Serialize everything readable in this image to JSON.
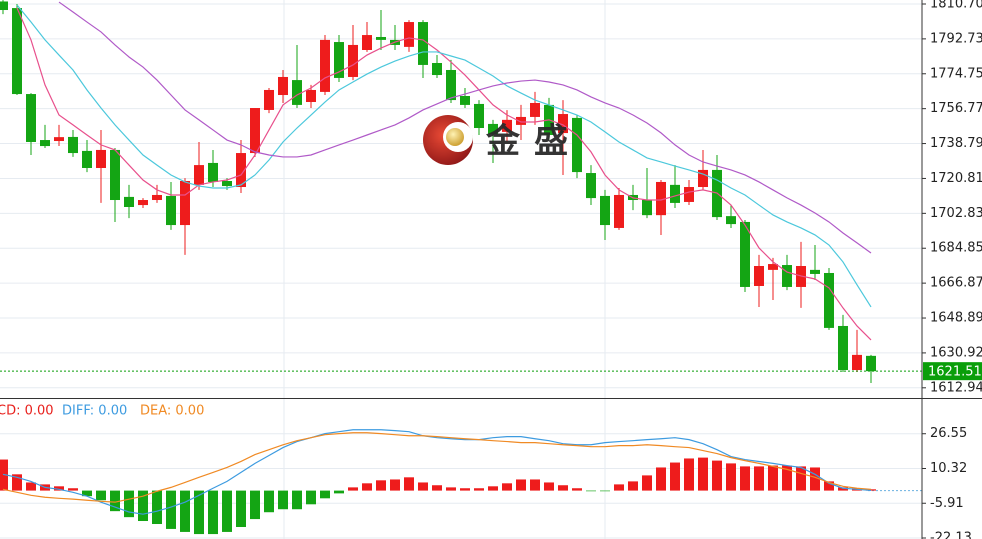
{
  "watermark": "金盛",
  "chart_data": [
    {
      "type": "candlestick",
      "open": [
        1812,
        1808.6,
        1764.3,
        1740.6,
        1740.1,
        1742.2,
        1735,
        1726.2,
        1735.5,
        1711.3,
        1707.1,
        1709.7,
        1711.8,
        1696.8,
        1717.5,
        1728.8,
        1719.5,
        1716.4,
        1733.9,
        1756.1,
        1763.8,
        1771.5,
        1760.2,
        1765.4,
        1791.1,
        1773.1,
        1787,
        1793.7,
        1792.2,
        1788.6,
        1801.4,
        1780.3,
        1776.7,
        1763.3,
        1759.2,
        1748.9,
        1744.8,
        1748.4,
        1752.5,
        1758.7,
        1744.2,
        1752,
        1723.6,
        1711.8,
        1695.3,
        1712.3,
        1709.7,
        1701.9,
        1717.5,
        1708.7,
        1716.4,
        1725.2,
        1701.4,
        1698.4,
        1665.4,
        1673.7,
        1676.2,
        1664.9,
        1673.7,
        1672.1,
        1644.8,
        1622.1,
        1629.4
      ],
      "high": [
        1812.7,
        1810.7,
        1764.8,
        1748.4,
        1748.4,
        1745.8,
        1740.6,
        1745.8,
        1736.5,
        1717.5,
        1710.7,
        1717.5,
        1719,
        1721,
        1739.6,
        1735.5,
        1721,
        1740.6,
        1757.1,
        1767.4,
        1776.7,
        1789.6,
        1769,
        1794.7,
        1794.7,
        1799.9,
        1801.4,
        1807.6,
        1799.9,
        1802.4,
        1802.4,
        1784.4,
        1781.9,
        1767.4,
        1761.2,
        1751,
        1756,
        1758.7,
        1765.4,
        1762.3,
        1761.2,
        1753.5,
        1727.7,
        1714.9,
        1715.9,
        1717.5,
        1726.2,
        1720,
        1727.7,
        1720,
        1735.5,
        1732.9,
        1707.1,
        1699.4,
        1681.4,
        1679.9,
        1681.4,
        1688.1,
        1686.5,
        1674.7,
        1650.5,
        1642.8,
        1629.9
      ],
      "low": [
        1805.5,
        1763.8,
        1732.9,
        1736.5,
        1737.5,
        1731.9,
        1724.1,
        1708.2,
        1698.4,
        1700.4,
        1705.6,
        1708.2,
        1694.3,
        1681.4,
        1714.9,
        1716.4,
        1714.9,
        1713.3,
        1731.9,
        1754.5,
        1759.7,
        1757.1,
        1757.1,
        1763.8,
        1770.5,
        1771.5,
        1786,
        1787,
        1787,
        1786,
        1772.6,
        1772.6,
        1759.7,
        1757.1,
        1743.2,
        1728.8,
        1740,
        1740.6,
        1748.4,
        1740.6,
        1722.6,
        1721,
        1707.1,
        1689.1,
        1694.3,
        1704.5,
        1700.4,
        1691.7,
        1705.6,
        1707.1,
        1714.9,
        1699.4,
        1695.3,
        1662.3,
        1654.6,
        1658.2,
        1663.3,
        1654.1,
        1668.5,
        1642.8,
        1621.1,
        1621.1,
        1615.4
      ],
      "close": [
        1807.6,
        1764.3,
        1739.6,
        1737.5,
        1742.1,
        1733.9,
        1726.2,
        1735.5,
        1709.7,
        1706.1,
        1709.7,
        1712.3,
        1696.8,
        1719.5,
        1727.7,
        1719,
        1716.9,
        1733.9,
        1757.1,
        1766.4,
        1773.1,
        1758.7,
        1766.4,
        1792.2,
        1772.6,
        1789.6,
        1794.7,
        1792.2,
        1789.6,
        1801.4,
        1779.3,
        1774.1,
        1761.2,
        1758.7,
        1746.8,
        1743.7,
        1751,
        1752.5,
        1759.7,
        1743.2,
        1754,
        1724.1,
        1710.7,
        1696.8,
        1712.3,
        1709.7,
        1701.9,
        1719,
        1708.2,
        1716.4,
        1725.2,
        1700.9,
        1697.3,
        1664.9,
        1675.7,
        1676.7,
        1664.9,
        1675.7,
        1671.6,
        1643.8,
        1622.1,
        1629.9,
        1621.51
      ],
      "up_color": "#ee1c1c",
      "down_color": "#14a514",
      "ma_lines": [
        {
          "color": "#e8508c",
          "values": [
            null,
            1808.6,
            1792.2,
            1769,
            1753.5,
            1748.4,
            1743.2,
            1738.1,
            1735.5,
            1727.7,
            1720,
            1714.9,
            1712.3,
            1712.3,
            1717.5,
            1719,
            1720,
            1722.6,
            1732.9,
            1745.8,
            1758.7,
            1763.8,
            1767.4,
            1772.6,
            1775.7,
            1779.3,
            1784.4,
            1788,
            1791.1,
            1793.2,
            1792.2,
            1787,
            1780.8,
            1774.1,
            1766.4,
            1758.7,
            1753.5,
            1749.9,
            1749.9,
            1751,
            1748.4,
            1743.2,
            1734.5,
            1722.6,
            1714.9,
            1710.8,
            1709.7,
            1709.7,
            1711.8,
            1713.8,
            1714.9,
            1713.3,
            1707.1,
            1696.8,
            1685,
            1677.8,
            1672.6,
            1670.6,
            1669,
            1664.4,
            1654.1,
            1644.8,
            1637.6
          ]
        },
        {
          "color": "#4cc8dc",
          "values": [
            null,
            1810.2,
            1801.4,
            1792.2,
            1784.4,
            1776.7,
            1766.4,
            1757.1,
            1748.4,
            1740.6,
            1732.9,
            1727.7,
            1722.6,
            1719,
            1716.9,
            1715.9,
            1715.9,
            1717.5,
            1722.6,
            1730.3,
            1739.6,
            1746.8,
            1753.5,
            1760.2,
            1766.4,
            1770.5,
            1774.6,
            1778.2,
            1781.3,
            1783.9,
            1786,
            1786,
            1783.9,
            1781.8,
            1777.7,
            1773.6,
            1768.5,
            1764.8,
            1761.2,
            1758.7,
            1756.1,
            1753.5,
            1749.9,
            1744.8,
            1739.6,
            1735.5,
            1731.4,
            1729.3,
            1727.2,
            1725.2,
            1723.1,
            1720,
            1715.9,
            1712.3,
            1707.1,
            1702,
            1698.4,
            1695.3,
            1691.7,
            1686.5,
            1677.8,
            1666,
            1654.6
          ]
        },
        {
          "color": "#b05ac8",
          "values": [
            null,
            null,
            null,
            null,
            1811.7,
            1806.6,
            1801.4,
            1796.3,
            1789.6,
            1783.4,
            1778.2,
            1771.5,
            1763.8,
            1756.1,
            1751,
            1745.8,
            1740.6,
            1738.1,
            1734.5,
            1732.9,
            1731.9,
            1731.9,
            1732.9,
            1735.5,
            1738.1,
            1740.6,
            1743.2,
            1745.8,
            1748.4,
            1752,
            1756.1,
            1759.2,
            1762.3,
            1764.3,
            1766.4,
            1768.5,
            1770,
            1771,
            1771.5,
            1770.5,
            1769,
            1766.4,
            1762.8,
            1759.7,
            1757.1,
            1753.5,
            1749.4,
            1744.3,
            1738.1,
            1732.9,
            1729.3,
            1727.2,
            1725.2,
            1722.6,
            1719,
            1714.9,
            1710.8,
            1707.1,
            1703,
            1698.4,
            1692.7,
            1687.6,
            1682.4
          ]
        }
      ],
      "ylim": [
        1608.2,
        1812.76
      ],
      "yticks": [
        {
          "value": 1810.7,
          "label": "1810.70"
        },
        1792.73,
        1774.75,
        1756.77,
        1738.79,
        1720.81,
        1702.83,
        1684.85,
        1666.87,
        1648.89,
        1630.92,
        1612.94
      ],
      "last_price": 1621.51,
      "last_price_color": "#0a9e0a",
      "grid": true
    },
    {
      "type": "macd",
      "histogram": {
        "name": "CD: 0.00",
        "color": "#e8201c",
        "up_color": "#ee1c1c",
        "down_color": "#14a514",
        "values": [
          14.5,
          7.6,
          3.8,
          2.9,
          2,
          1.1,
          -2.6,
          -4.5,
          -9.6,
          -12.4,
          -14.2,
          -15.6,
          -17.9,
          -19.3,
          -20.3,
          -20.3,
          -19.3,
          -17,
          -13.3,
          -10.1,
          -8.7,
          -8.7,
          -6.4,
          -3.6,
          -1.3,
          1.5,
          3.4,
          4.8,
          5.2,
          6.2,
          3.8,
          2.5,
          1.5,
          1.1,
          1.1,
          2,
          3.4,
          5.2,
          5.2,
          3.8,
          2.5,
          1.1,
          -0.3,
          -0.3,
          2.9,
          4.3,
          7.1,
          10.8,
          13.1,
          15,
          15.4,
          14,
          12.7,
          11.3,
          11.3,
          11.7,
          11.7,
          11.3,
          10.8,
          4.3,
          1.5,
          1.1,
          0.6
        ]
      },
      "series": [
        {
          "name": "DIFF: 0.00",
          "color": "#3d9be0",
          "values": [
            7.6,
            6.2,
            4.3,
            1.5,
            0.6,
            -0.8,
            -2.6,
            -5.4,
            -7.7,
            -10,
            -11,
            -9.6,
            -7.7,
            -5.4,
            -2.2,
            1.1,
            4.3,
            8.5,
            12.7,
            16.4,
            20.1,
            22.9,
            24.7,
            26.6,
            27.5,
            28.4,
            28.4,
            28.4,
            28,
            27.5,
            25.6,
            24.7,
            24.2,
            23.8,
            23.8,
            24.7,
            25.2,
            25.2,
            24.2,
            23.3,
            21.9,
            21.4,
            21.4,
            22.4,
            22.9,
            23.3,
            23.8,
            24.2,
            24.7,
            23.8,
            21.9,
            19.1,
            15.9,
            14.5,
            13.6,
            12.7,
            11.7,
            10.8,
            7.6,
            3.4,
            1.1,
            0.6,
            0.1
          ]
        },
        {
          "name": "DEA: 0.00",
          "color": "#f08a24",
          "values": [
            0.6,
            -0.8,
            -2.2,
            -3.1,
            -3.6,
            -4,
            -4.5,
            -5,
            -5.4,
            -4,
            -2.6,
            -0.3,
            1.5,
            3.8,
            6.2,
            8.5,
            10.8,
            13.6,
            16.8,
            19.1,
            21.4,
            23.3,
            24.7,
            26.1,
            26.6,
            27,
            27,
            26.6,
            26.1,
            25.6,
            25.6,
            25.2,
            24.7,
            24.2,
            23.8,
            23.3,
            22.9,
            22.4,
            22.4,
            21.9,
            21.4,
            21,
            20.5,
            20.5,
            21,
            21,
            21.4,
            21,
            20.5,
            20.1,
            18.7,
            17.3,
            15.4,
            14,
            12.7,
            11.3,
            9.9,
            8,
            6.2,
            3.8,
            2,
            1.1,
            0.6
          ]
        }
      ],
      "ylim": [
        -22.6,
        42.3
      ],
      "yticks": [
        26.55,
        10.32,
        -5.91,
        -22.13
      ],
      "grid": true
    }
  ]
}
